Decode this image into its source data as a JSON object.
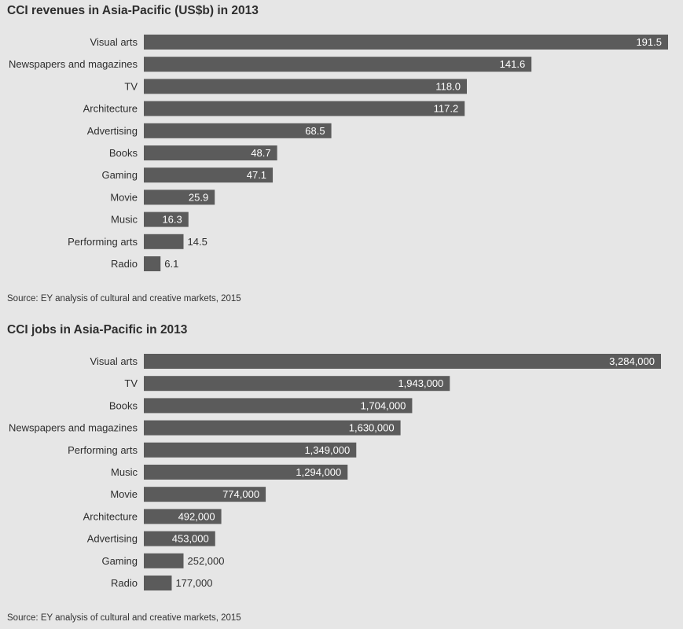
{
  "charts": [
    {
      "title": "CCI revenues in Asia-Pacific (US$b) in 2013",
      "source": "Source: EY analysis of cultural and creative markets, 2015",
      "chart_data": {
        "type": "bar",
        "orientation": "horizontal",
        "title": "CCI revenues in Asia-Pacific (US$b) in 2013",
        "xlabel": "",
        "ylabel": "",
        "grid": false,
        "xlim": [
          0,
          191.5
        ],
        "colors": {
          "bar": "#5b5b5b",
          "label_inside": "#ffffff",
          "label_outside": "#2e2e2e"
        },
        "categories": [
          "Visual arts",
          "Newspapers and magazines",
          "TV",
          "Architecture",
          "Advertising",
          "Books",
          "Gaming",
          "Movie",
          "Music",
          "Performing arts",
          "Radio"
        ],
        "values": [
          191.5,
          141.6,
          118.0,
          117.2,
          68.5,
          48.7,
          47.1,
          25.9,
          16.3,
          14.5,
          6.1
        ],
        "value_labels": [
          "191.5",
          "141.6",
          "118.0",
          "117.2",
          "68.5",
          "48.7",
          "47.1",
          "25.9",
          "16.3",
          "14.5",
          "6.1"
        ]
      }
    },
    {
      "title": "CCI jobs in Asia-Pacific in 2013",
      "source": "Source: EY analysis of cultural and creative markets, 2015",
      "chart_data": {
        "type": "bar",
        "orientation": "horizontal",
        "title": "CCI jobs in Asia-Pacific in 2013",
        "xlabel": "",
        "ylabel": "",
        "grid": false,
        "xlim": [
          0,
          3284000
        ],
        "colors": {
          "bar": "#5b5b5b",
          "label_inside": "#ffffff",
          "label_outside": "#2e2e2e"
        },
        "categories": [
          "Visual arts",
          "TV",
          "Books",
          "Newspapers and magazines",
          "Performing arts",
          "Music",
          "Movie",
          "Architecture",
          "Advertising",
          "Gaming",
          "Radio"
        ],
        "values": [
          3284000,
          1943000,
          1704000,
          1630000,
          1349000,
          1294000,
          774000,
          492000,
          453000,
          252000,
          177000
        ],
        "value_labels": [
          "3,284,000",
          "1,943,000",
          "1,704,000",
          "1,630,000",
          "1,349,000",
          "1,294,000",
          "774,000",
          "492,000",
          "453,000",
          "252,000",
          "177,000"
        ]
      }
    }
  ]
}
